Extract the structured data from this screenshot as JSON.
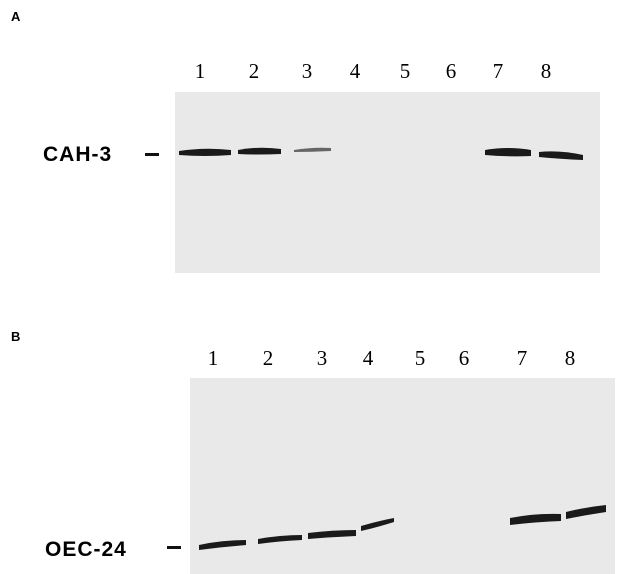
{
  "panels": [
    {
      "label": "A",
      "lanes": [
        "1",
        "2",
        "3",
        "4",
        "5",
        "6",
        "7",
        "8"
      ],
      "marker": "CAH-3"
    },
    {
      "label": "B",
      "lanes": [
        "1",
        "2",
        "3",
        "4",
        "5",
        "6",
        "7",
        "8"
      ],
      "marker": "OEC-24"
    }
  ]
}
